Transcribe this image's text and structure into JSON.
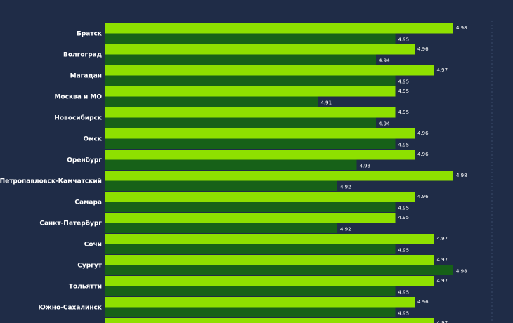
{
  "chart_data": {
    "type": "grouped-barh",
    "categories": [
      "Братск",
      "Волгоград",
      "Магадан",
      "Москва и МО",
      "Новосибирск",
      "Омск",
      "Оренбург",
      "Петропавловск-Камчатский",
      "Самара",
      "Санкт-Петербург",
      "Сочи",
      "Сургут",
      "Тольятти",
      "Южно-Сахалинск",
      null
    ],
    "series": [
      {
        "color": "#8ee000",
        "values": [
          4.98,
          4.96,
          4.97,
          4.95,
          4.95,
          4.96,
          4.96,
          4.98,
          4.96,
          4.95,
          4.97,
          4.97,
          4.97,
          4.96,
          4.97
        ]
      },
      {
        "color": "#176118",
        "values": [
          4.95,
          4.94,
          4.95,
          4.91,
          4.94,
          4.95,
          4.93,
          4.92,
          4.95,
          4.92,
          4.95,
          4.98,
          4.95,
          4.95,
          null
        ]
      }
    ],
    "xlim": [
      4.8,
      5.0
    ]
  }
}
